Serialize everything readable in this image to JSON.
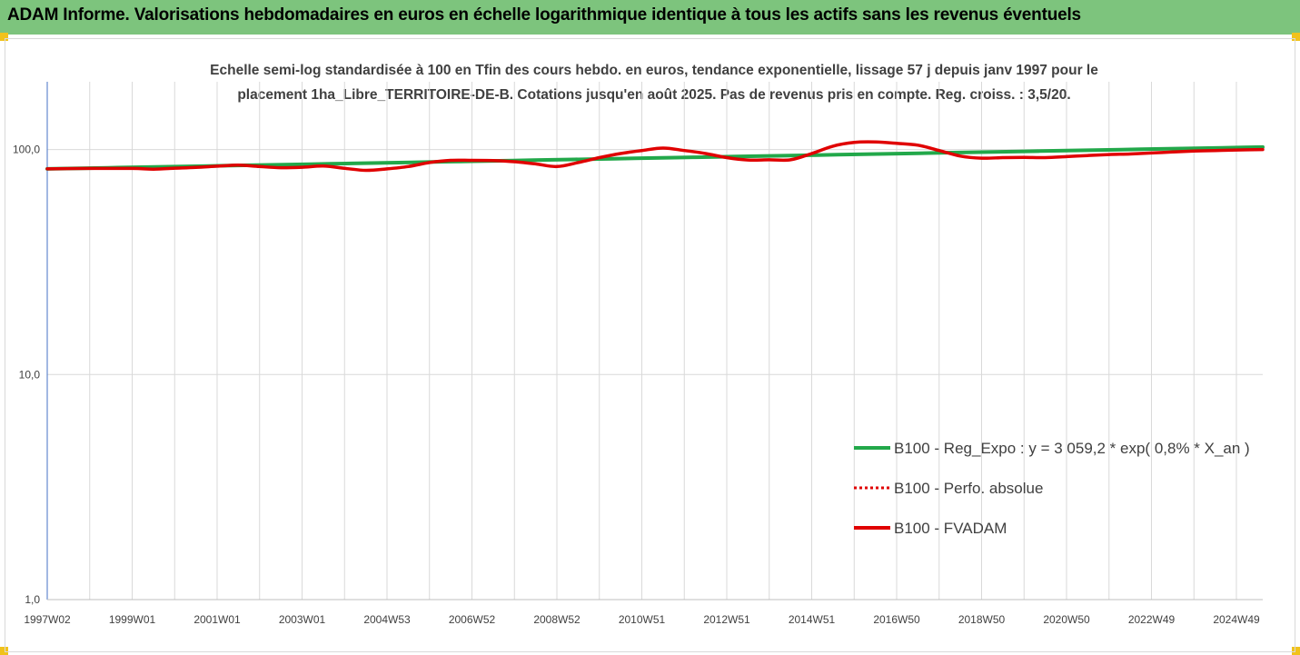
{
  "banner": {
    "title": "ADAM Informe. Valorisations hebdomadaires en euros en échelle logarithmique identique à tous les actifs sans les revenus éventuels",
    "color": "#7dc47d"
  },
  "chart_data": {
    "type": "line",
    "title_lines": [
      "Echelle semi-log standardisée à 100 en Tfin des cours hebdo. en euros, tendance exponentielle, lissage 57 j depuis janv 1997 pour le",
      "placement 1ha_Libre_TERRITOIRE-DE-B. Cotations jusqu'en août 2025. Pas de revenus pris en compte. Reg. croiss. : 3,5/20."
    ],
    "y_scale": "log",
    "ylim": [
      1,
      200
    ],
    "y_ticks": [
      {
        "value": 1,
        "label": "1,0"
      },
      {
        "value": 10,
        "label": "10,0"
      },
      {
        "value": 100,
        "label": "100,0"
      }
    ],
    "xlim": [
      1997.0,
      2025.62
    ],
    "x_ticks": [
      {
        "value": 1997.0,
        "label": "1997W02"
      },
      {
        "value": 1999.0,
        "label": "1999W01"
      },
      {
        "value": 2001.0,
        "label": "2001W01"
      },
      {
        "value": 2003.0,
        "label": "2003W01"
      },
      {
        "value": 2005.0,
        "label": "2004W53"
      },
      {
        "value": 2007.0,
        "label": "2006W52"
      },
      {
        "value": 2009.0,
        "label": "2008W52"
      },
      {
        "value": 2011.0,
        "label": "2010W51"
      },
      {
        "value": 2013.0,
        "label": "2012W51"
      },
      {
        "value": 2015.0,
        "label": "2014W51"
      },
      {
        "value": 2017.0,
        "label": "2016W50"
      },
      {
        "value": 2019.0,
        "label": "2018W50"
      },
      {
        "value": 2021.0,
        "label": "2020W50"
      },
      {
        "value": 2023.0,
        "label": "2022W49"
      },
      {
        "value": 2025.0,
        "label": "2024W49"
      }
    ],
    "grid": "vertical",
    "legend_position": "right-middle",
    "series": [
      {
        "name": "B100 - Reg_Expo : y = 3 059,2 * exp( 0,8% *  X_an )",
        "color": "#22a84a",
        "style": "solid",
        "x": [
          1997.0,
          2025.62
        ],
        "y": [
          82.0,
          102.5
        ]
      },
      {
        "name": "B100 - Perfo. absolue",
        "color": "#e00000",
        "style": "dotted",
        "x": [],
        "y": []
      },
      {
        "name": "B100 - FVADAM",
        "color": "#e00000",
        "style": "solid",
        "x": [
          1997.0,
          1998.0,
          1999.0,
          1999.5,
          2000.0,
          2000.5,
          2001.0,
          2001.5,
          2002.0,
          2002.5,
          2003.0,
          2003.5,
          2004.0,
          2004.5,
          2005.0,
          2005.5,
          2006.0,
          2006.5,
          2007.0,
          2007.5,
          2008.0,
          2008.5,
          2009.0,
          2009.5,
          2010.0,
          2010.5,
          2011.0,
          2011.5,
          2012.0,
          2012.5,
          2013.0,
          2013.5,
          2014.0,
          2014.5,
          2015.0,
          2015.5,
          2016.0,
          2016.5,
          2017.0,
          2017.5,
          2018.0,
          2018.5,
          2019.0,
          2019.5,
          2020.0,
          2020.5,
          2021.0,
          2021.5,
          2022.0,
          2022.5,
          2023.0,
          2023.5,
          2024.0,
          2024.5,
          2025.0,
          2025.62
        ],
        "y": [
          82.0,
          82.4,
          82.4,
          81.8,
          82.6,
          83.3,
          84.3,
          85.2,
          84.0,
          83.0,
          83.4,
          84.4,
          82.5,
          80.8,
          82.0,
          84.0,
          87.5,
          89.5,
          89.5,
          89.3,
          88.3,
          86.3,
          84.0,
          87.5,
          92.0,
          96.0,
          99.0,
          101.5,
          99.0,
          96.0,
          92.0,
          89.8,
          90.0,
          90.0,
          96.0,
          103.5,
          107.5,
          108.0,
          106.5,
          104.5,
          99.0,
          93.5,
          91.5,
          92.0,
          92.2,
          92.0,
          93.0,
          94.0,
          95.0,
          95.5,
          96.5,
          97.5,
          98.5,
          99.0,
          99.5,
          100.0
        ]
      }
    ]
  }
}
